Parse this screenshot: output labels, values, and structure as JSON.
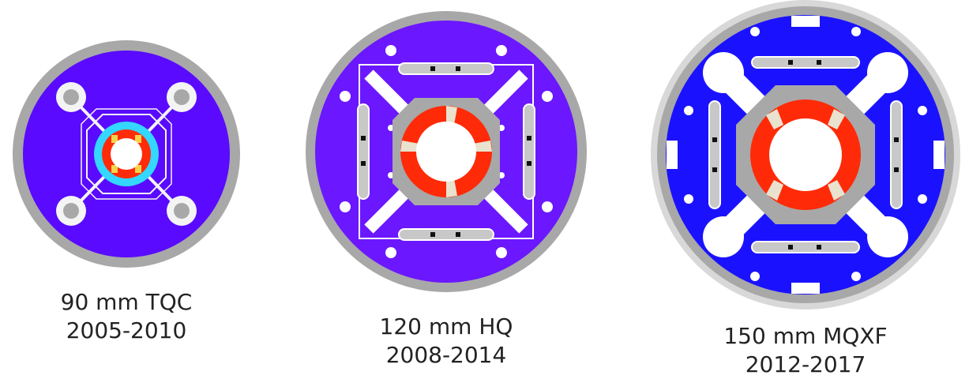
{
  "figure": {
    "magnets": [
      {
        "aperture": "90 mm TQC",
        "years": "2005-2010",
        "colors": {
          "body": "#5a0aff",
          "shell": "#a8a8a8",
          "collar": "#f4f4f4",
          "ring": "#33d7ff",
          "coil": "#ff2b08",
          "wedge": "#f5d34a"
        }
      },
      {
        "aperture": "120 mm HQ",
        "years": "2008-2014",
        "colors": {
          "body": "#6b17ff",
          "shell": "#a8a8a8",
          "pad": "#cfcfcf",
          "bore": "#ffffff",
          "coil": "#ff2b08",
          "wedge": "#e8e2cf"
        }
      },
      {
        "aperture": "150 mm MQXF",
        "years": "2012-2017",
        "colors": {
          "body": "#1a12ff",
          "shell": "#a8a8a8",
          "outer_rim": "#d8d8d8",
          "bore": "#ffffff",
          "coil": "#ff2b08",
          "wedge": "#e8e2cf"
        }
      }
    ]
  }
}
